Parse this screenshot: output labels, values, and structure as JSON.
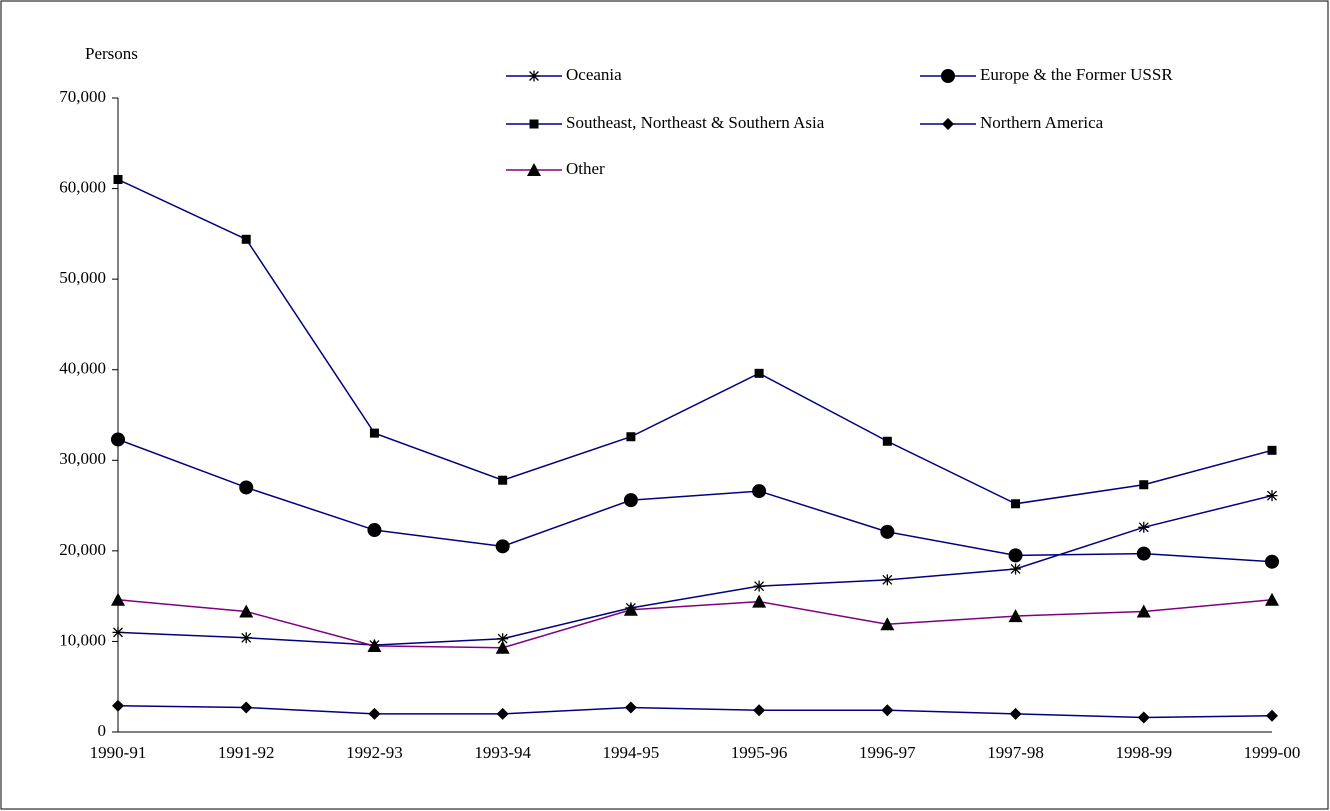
{
  "chart_data": {
    "type": "line",
    "y_label": "Persons",
    "categories": [
      "1990-91",
      "1991-92",
      "1992-93",
      "1993-94",
      "1994-95",
      "1995-96",
      "1996-97",
      "1997-98",
      "1998-99",
      "1999-00"
    ],
    "ylim": [
      0,
      70000
    ],
    "yticks": [
      0,
      {
        "value": 10000,
        "label": "10,000"
      },
      {
        "value": 20000,
        "label": "20,000"
      },
      {
        "value": 30000,
        "label": "30,000"
      },
      {
        "value": 40000,
        "label": "40,000"
      },
      {
        "value": 50000,
        "label": "50,000"
      },
      {
        "value": 60000,
        "label": "60,000"
      },
      {
        "value": 70000,
        "label": "70,000"
      }
    ],
    "grid": false,
    "series": [
      {
        "name": "Oceania",
        "color": "#000080",
        "marker": "asterisk",
        "values": [
          11000,
          10400,
          9600,
          10300,
          13700,
          16100,
          16800,
          18000,
          22600,
          26100
        ]
      },
      {
        "name": "Europe & the Former USSR",
        "color": "#000080",
        "marker": "circle",
        "values": [
          32300,
          27000,
          22300,
          20500,
          25600,
          26600,
          22100,
          19500,
          19700,
          18800
        ]
      },
      {
        "name": "Southeast, Northeast & Southern Asia",
        "color": "#000080",
        "marker": "square",
        "values": [
          61000,
          54400,
          33000,
          27800,
          32600,
          39600,
          32100,
          25200,
          27300,
          31100
        ]
      },
      {
        "name": "Northern America",
        "color": "#000080",
        "marker": "diamond",
        "values": [
          2900,
          2700,
          2000,
          2000,
          2700,
          2400,
          2400,
          2000,
          1600,
          1800
        ]
      },
      {
        "name": "Other",
        "color": "#800080",
        "marker": "triangle",
        "values": [
          14600,
          13300,
          9500,
          9300,
          13500,
          14400,
          11900,
          12800,
          13300,
          14600
        ]
      }
    ]
  }
}
